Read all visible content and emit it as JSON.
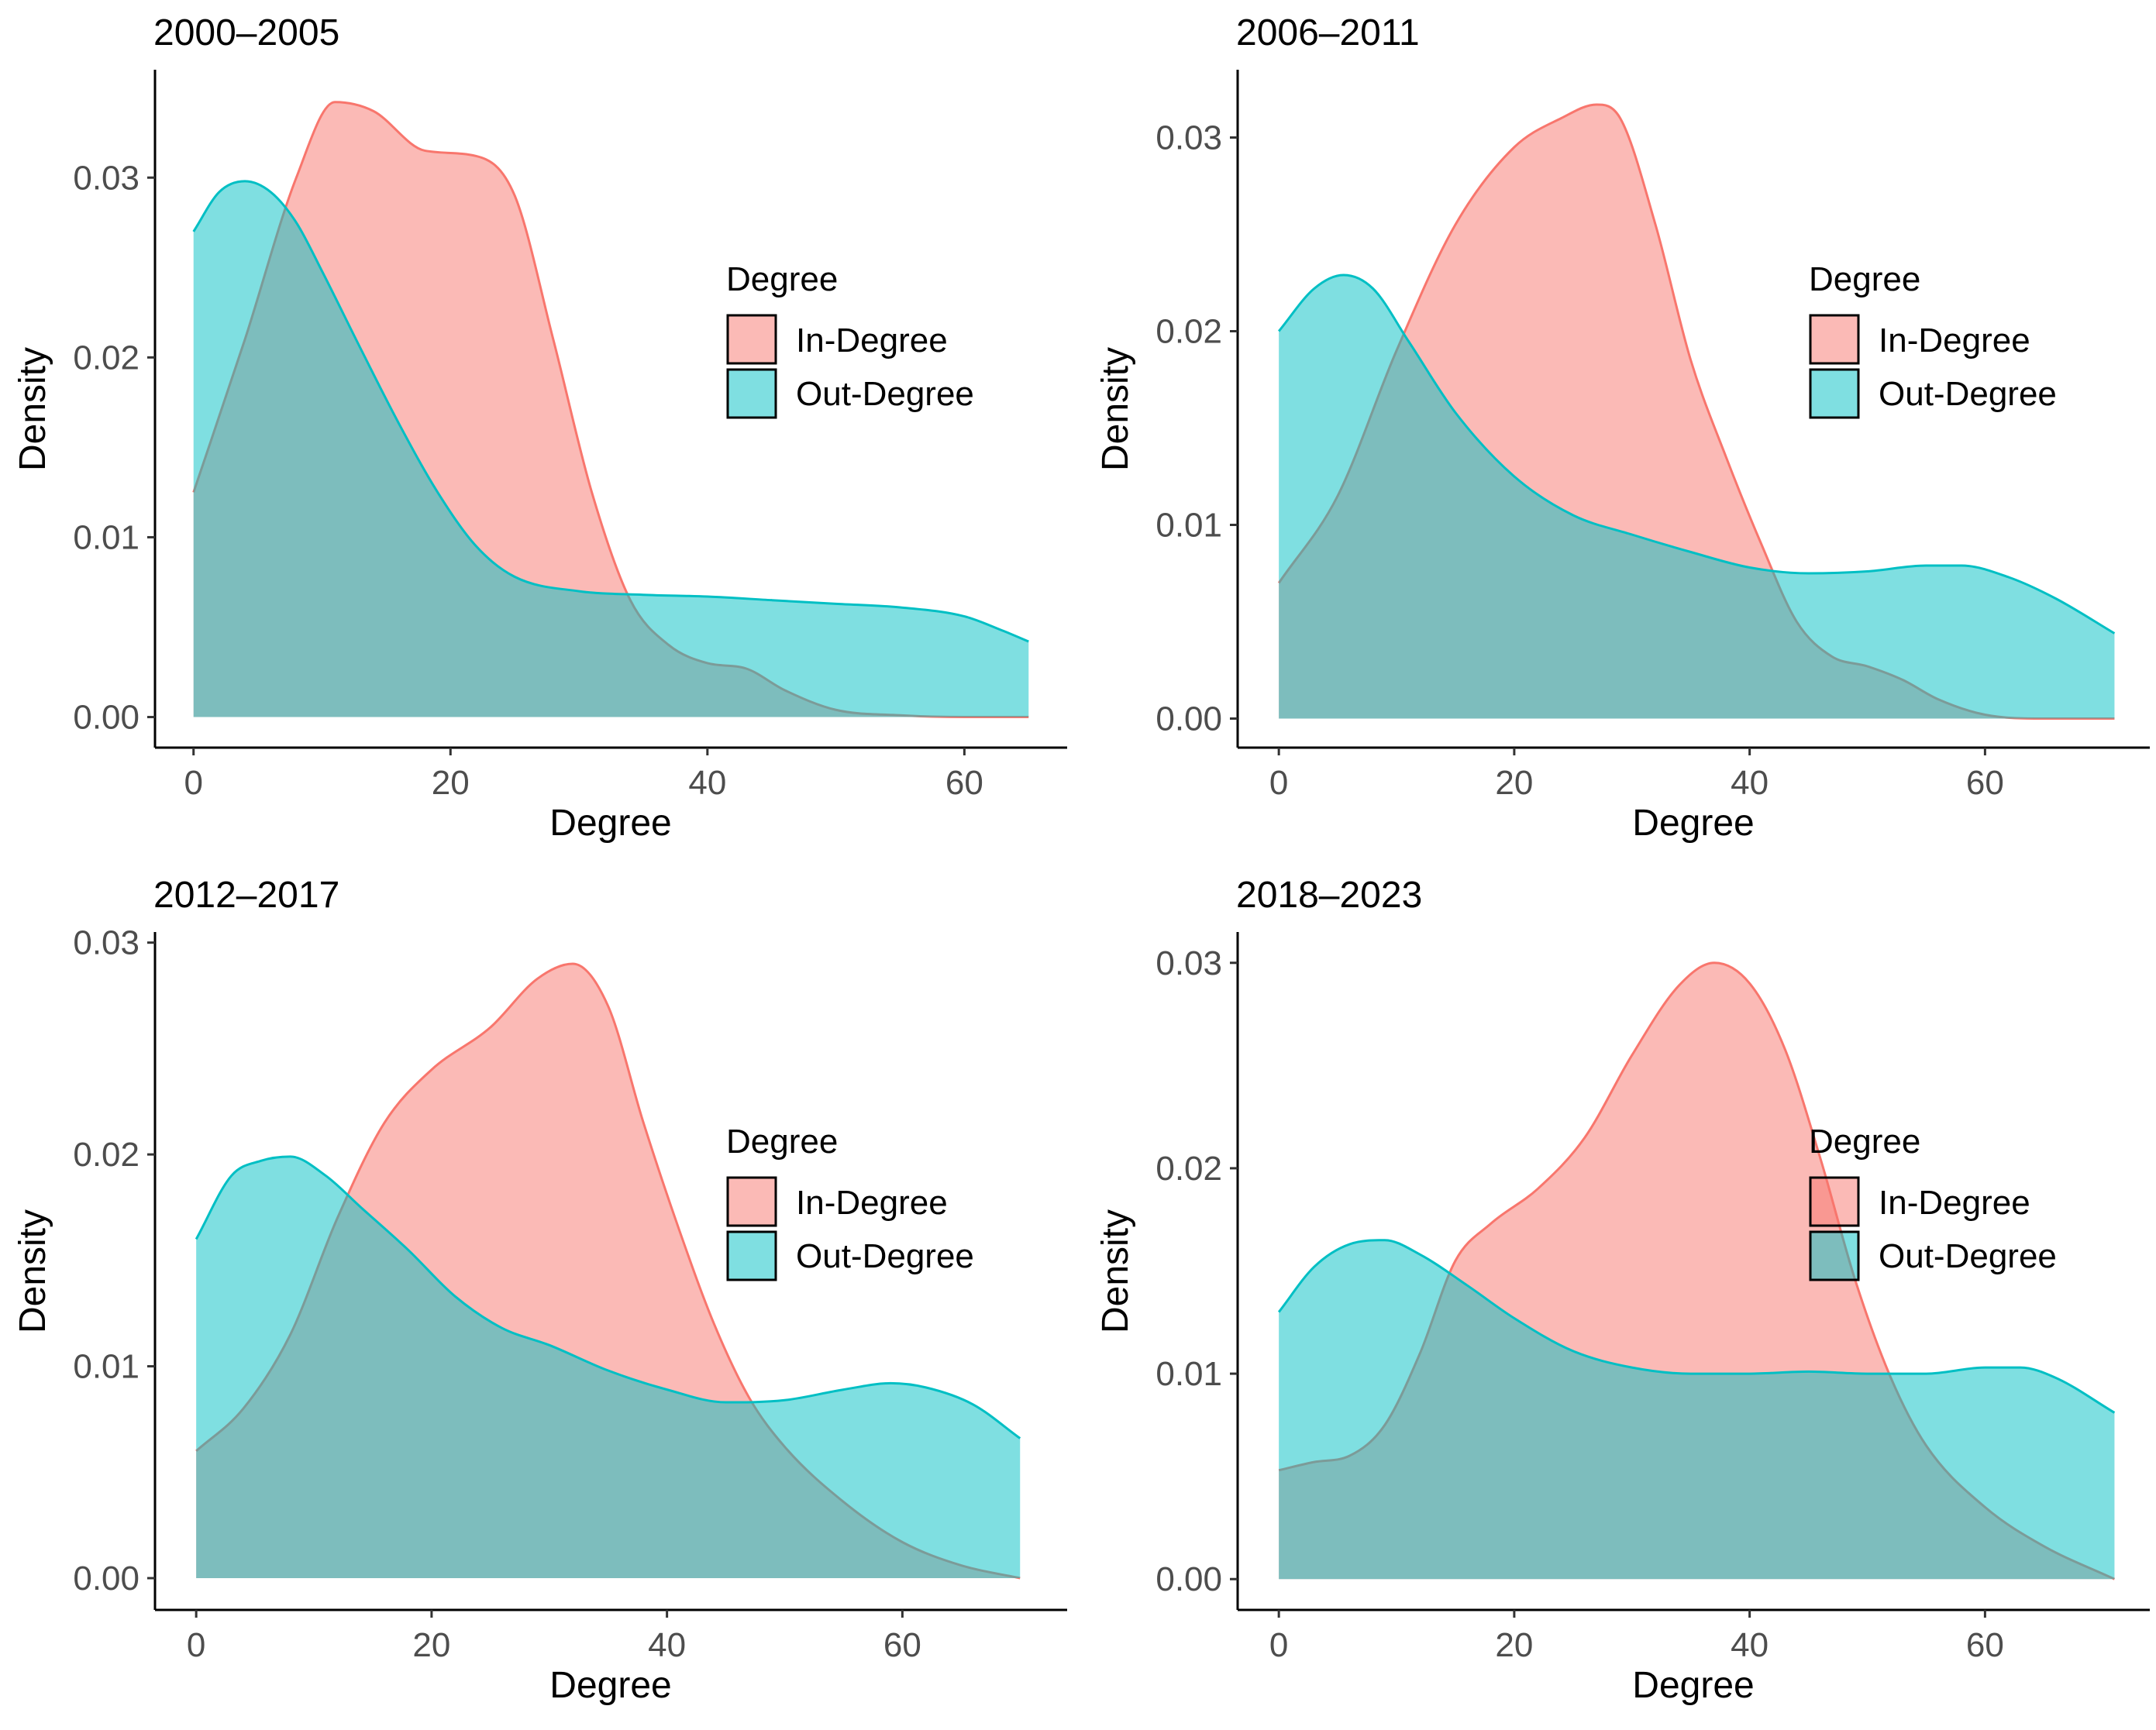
{
  "chart_data": [
    {
      "type": "area",
      "title": "2000–2005",
      "xlabel": "Degree",
      "ylabel": "Density",
      "xlim": [
        -3,
        68
      ],
      "ylim": [
        -0.0017,
        0.036
      ],
      "xticks": [
        0,
        20,
        40,
        60
      ],
      "xtick_labels": [
        "0",
        "20",
        "40",
        "60"
      ],
      "yticks": [
        0,
        0.01,
        0.02,
        0.03
      ],
      "ytick_labels": [
        "0.00",
        "0.01",
        "0.02",
        "0.03"
      ],
      "legend": {
        "title": "Degree",
        "position": "right",
        "entries": [
          "In-Degree",
          "Out-Degree"
        ]
      },
      "series": [
        {
          "name": "In-Degree",
          "color": "#F8766D",
          "x": [
            0,
            4,
            8,
            11,
            14,
            18,
            22,
            25,
            28,
            31,
            34,
            37,
            40,
            43,
            46,
            50,
            55,
            60,
            65
          ],
          "y": [
            0.0125,
            0.021,
            0.03,
            0.0342,
            0.0337,
            0.0315,
            0.0312,
            0.029,
            0.021,
            0.0125,
            0.0065,
            0.004,
            0.003,
            0.0027,
            0.0015,
            0.0004,
            0.0001,
            0.0,
            0.0
          ]
        },
        {
          "name": "Out-Degree",
          "color": "#00BFC4",
          "x": [
            0,
            2,
            4,
            6,
            8,
            10,
            13,
            16,
            19,
            22,
            25,
            30,
            35,
            40,
            45,
            50,
            55,
            60,
            63,
            65
          ],
          "y": [
            0.027,
            0.0292,
            0.0298,
            0.0292,
            0.0275,
            0.0248,
            0.0205,
            0.0163,
            0.0125,
            0.0095,
            0.0078,
            0.007,
            0.0068,
            0.0067,
            0.0065,
            0.0063,
            0.0061,
            0.0056,
            0.0048,
            0.0042
          ]
        }
      ]
    },
    {
      "type": "area",
      "title": "2006–2011",
      "xlabel": "Degree",
      "ylabel": "Density",
      "xlim": [
        -3.5,
        74
      ],
      "ylim": [
        -0.0015,
        0.0335
      ],
      "xticks": [
        0,
        20,
        40,
        60
      ],
      "xtick_labels": [
        "0",
        "20",
        "40",
        "60"
      ],
      "yticks": [
        0,
        0.01,
        0.02,
        0.03
      ],
      "ytick_labels": [
        "0.00",
        "0.01",
        "0.02",
        "0.03"
      ],
      "legend": {
        "title": "Degree",
        "position": "right",
        "entries": [
          "In-Degree",
          "Out-Degree"
        ]
      },
      "series": [
        {
          "name": "In-Degree",
          "color": "#F8766D",
          "x": [
            0,
            5,
            10,
            15,
            20,
            24,
            27,
            29,
            32,
            35,
            38,
            41,
            44,
            47,
            50,
            53,
            56,
            60,
            65,
            71
          ],
          "y": [
            0.007,
            0.0115,
            0.019,
            0.0255,
            0.0295,
            0.031,
            0.0317,
            0.031,
            0.0255,
            0.0185,
            0.0135,
            0.009,
            0.005,
            0.0032,
            0.0027,
            0.002,
            0.001,
            0.0002,
            0.0,
            0.0
          ]
        },
        {
          "name": "Out-Degree",
          "color": "#00BFC4",
          "x": [
            0,
            3,
            5.5,
            8,
            11,
            15,
            20,
            25,
            30,
            35,
            40,
            45,
            50,
            55,
            58,
            62,
            66,
            71
          ],
          "y": [
            0.02,
            0.0222,
            0.0229,
            0.0222,
            0.0195,
            0.0158,
            0.0125,
            0.0105,
            0.0095,
            0.0086,
            0.0078,
            0.0075,
            0.0076,
            0.0079,
            0.0079,
            0.0073,
            0.0062,
            0.0044
          ]
        }
      ]
    },
    {
      "type": "area",
      "title": "2012–2017",
      "xlabel": "Degree",
      "ylabel": "Density",
      "xlim": [
        -3.5,
        74
      ],
      "ylim": [
        -0.0015,
        0.0305
      ],
      "xticks": [
        0,
        20,
        40,
        60
      ],
      "xtick_labels": [
        "0",
        "20",
        "40",
        "60"
      ],
      "yticks": [
        0,
        0.01,
        0.02,
        0.03
      ],
      "ytick_labels": [
        "0.00",
        "0.01",
        "0.02",
        "0.03"
      ],
      "legend": {
        "title": "Degree",
        "position": "right",
        "entries": [
          "In-Degree",
          "Out-Degree"
        ]
      },
      "series": [
        {
          "name": "In-Degree",
          "color": "#F8766D",
          "x": [
            0,
            4,
            8,
            12,
            16,
            20,
            25,
            29,
            32,
            35,
            38,
            41,
            44,
            47,
            50,
            55,
            60,
            65,
            70
          ],
          "y": [
            0.006,
            0.008,
            0.0115,
            0.017,
            0.0215,
            0.024,
            0.026,
            0.0283,
            0.029,
            0.027,
            0.0215,
            0.0165,
            0.012,
            0.0085,
            0.0062,
            0.0036,
            0.0017,
            0.0006,
            0.0
          ]
        },
        {
          "name": "Out-Degree",
          "color": "#00BFC4",
          "x": [
            0,
            3,
            5.5,
            8,
            11,
            14,
            18,
            22,
            26,
            30,
            35,
            40,
            45,
            50,
            55,
            59,
            62,
            66,
            70
          ],
          "y": [
            0.016,
            0.019,
            0.0197,
            0.0199,
            0.019,
            0.0175,
            0.0155,
            0.0133,
            0.0118,
            0.011,
            0.0098,
            0.0089,
            0.0083,
            0.0084,
            0.0089,
            0.0092,
            0.009,
            0.0082,
            0.0066
          ]
        }
      ]
    },
    {
      "type": "area",
      "title": "2018–2023",
      "xlabel": "Degree",
      "ylabel": "Density",
      "xlim": [
        -3.5,
        74
      ],
      "ylim": [
        -0.0015,
        0.0315
      ],
      "xticks": [
        0,
        20,
        40,
        60
      ],
      "xtick_labels": [
        "0",
        "20",
        "40",
        "60"
      ],
      "yticks": [
        0,
        0.01,
        0.02,
        0.03
      ],
      "ytick_labels": [
        "0.00",
        "0.01",
        "0.02",
        "0.03"
      ],
      "legend": {
        "title": "Degree",
        "position": "right",
        "entries": [
          "In-Degree",
          "Out-Degree"
        ]
      },
      "series": [
        {
          "name": "In-Degree",
          "color": "#F8766D",
          "x": [
            0,
            3,
            6,
            9,
            12,
            15,
            18,
            22,
            26,
            30,
            34,
            37,
            40,
            43,
            46,
            49,
            52,
            55,
            60,
            65,
            71
          ],
          "y": [
            0.0053,
            0.0057,
            0.006,
            0.0075,
            0.011,
            0.0155,
            0.0173,
            0.019,
            0.0215,
            0.0255,
            0.0289,
            0.03,
            0.029,
            0.0258,
            0.0205,
            0.0145,
            0.0098,
            0.0065,
            0.0035,
            0.0016,
            0.0
          ]
        },
        {
          "name": "Out-Degree",
          "color": "#00BFC4",
          "x": [
            0,
            3,
            6,
            9,
            12,
            16,
            20,
            25,
            30,
            35,
            40,
            45,
            50,
            55,
            60,
            63,
            66,
            71
          ],
          "y": [
            0.013,
            0.0152,
            0.0163,
            0.0165,
            0.0158,
            0.0143,
            0.0127,
            0.0111,
            0.0103,
            0.01,
            0.01,
            0.0101,
            0.01,
            0.01,
            0.0103,
            0.0103,
            0.0098,
            0.0081
          ]
        }
      ]
    }
  ]
}
